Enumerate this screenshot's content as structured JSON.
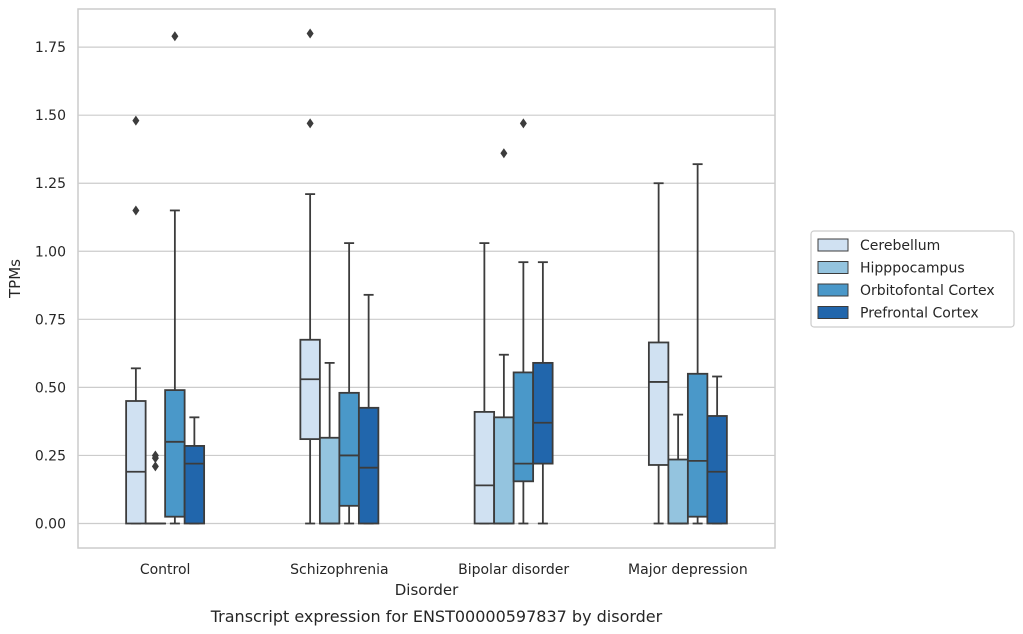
{
  "caption": "Transcript expression for ENST00000597837 by disorder",
  "chart_data": {
    "type": "box",
    "xlabel": "Disorder",
    "ylabel": "TPMs",
    "ylim": [
      -0.09,
      1.89
    ],
    "yticks": [
      "0.00",
      "0.25",
      "0.50",
      "0.75",
      "1.00",
      "1.25",
      "1.50",
      "1.75"
    ],
    "ytick_values": [
      0,
      0.25,
      0.5,
      0.75,
      1.0,
      1.25,
      1.5,
      1.75
    ],
    "grid": true,
    "legend_position": "right",
    "categories": [
      "Control",
      "Schizophrenia",
      "Bipolar disorder",
      "Major depression"
    ],
    "series": [
      {
        "name": "Cerebellum",
        "color": "#d0e1f2",
        "boxes": [
          {
            "whisker_low": 0,
            "q1": 0,
            "median": 0.19,
            "q3": 0.45,
            "whisker_high": 0.57,
            "outliers": [
              1.15,
              1.48
            ]
          },
          {
            "whisker_low": 0,
            "q1": 0.31,
            "median": 0.53,
            "q3": 0.675,
            "whisker_high": 1.21,
            "outliers": [
              1.47,
              1.8
            ]
          },
          {
            "whisker_low": 0,
            "q1": 0,
            "median": 0.14,
            "q3": 0.41,
            "whisker_high": 1.03,
            "outliers": []
          },
          {
            "whisker_low": 0,
            "q1": 0.215,
            "median": 0.52,
            "q3": 0.665,
            "whisker_high": 1.25,
            "outliers": []
          }
        ]
      },
      {
        "name": "Hipppocampus",
        "color": "#94c4df",
        "boxes": [
          {
            "whisker_low": 0,
            "q1": 0,
            "median": 0,
            "q3": 0,
            "whisker_high": 0,
            "outliers": [
              0.21,
              0.24,
              0.25
            ]
          },
          {
            "whisker_low": 0,
            "q1": 0,
            "median": 0,
            "q3": 0.315,
            "whisker_high": 0.59,
            "outliers": []
          },
          {
            "whisker_low": 0,
            "q1": 0,
            "median": 0,
            "q3": 0.39,
            "whisker_high": 0.62,
            "outliers": [
              1.36
            ]
          },
          {
            "whisker_low": 0,
            "q1": 0,
            "median": 0,
            "q3": 0.235,
            "whisker_high": 0.4,
            "outliers": []
          }
        ]
      },
      {
        "name": "Orbitofontal Cortex",
        "color": "#4a98c9",
        "boxes": [
          {
            "whisker_low": 0,
            "q1": 0.025,
            "median": 0.3,
            "q3": 0.49,
            "whisker_high": 1.15,
            "outliers": [
              1.79
            ]
          },
          {
            "whisker_low": 0,
            "q1": 0.065,
            "median": 0.25,
            "q3": 0.48,
            "whisker_high": 1.03,
            "outliers": []
          },
          {
            "whisker_low": 0,
            "q1": 0.155,
            "median": 0.22,
            "q3": 0.555,
            "whisker_high": 0.96,
            "outliers": [
              1.47
            ]
          },
          {
            "whisker_low": 0,
            "q1": 0.025,
            "median": 0.23,
            "q3": 0.55,
            "whisker_high": 1.32,
            "outliers": []
          }
        ]
      },
      {
        "name": "Prefrontal Cortex",
        "color": "#2166ac",
        "boxes": [
          {
            "whisker_low": 0,
            "q1": 0,
            "median": 0.22,
            "q3": 0.285,
            "whisker_high": 0.39,
            "outliers": []
          },
          {
            "whisker_low": 0,
            "q1": 0,
            "median": 0.205,
            "q3": 0.425,
            "whisker_high": 0.84,
            "outliers": []
          },
          {
            "whisker_low": 0,
            "q1": 0.22,
            "median": 0.37,
            "q3": 0.59,
            "whisker_high": 0.96,
            "outliers": []
          },
          {
            "whisker_low": 0,
            "q1": 0,
            "median": 0.19,
            "q3": 0.395,
            "whisker_high": 0.54,
            "outliers": []
          }
        ]
      }
    ]
  }
}
